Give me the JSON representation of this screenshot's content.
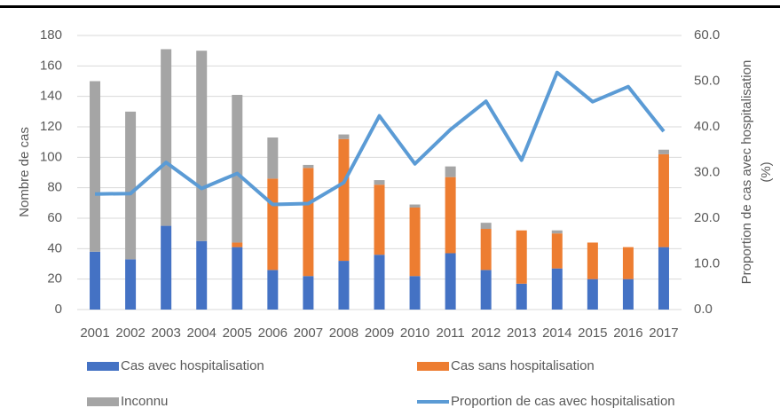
{
  "chart_data": {
    "type": "bar",
    "stacked": true,
    "ylabel": "Nombre de cas",
    "y2label": [
      "Proportion de cas avec hospitalisation",
      "(%)"
    ],
    "categories": [
      "2001",
      "2002",
      "2003",
      "2004",
      "2005",
      "2006",
      "2007",
      "2008",
      "2009",
      "2010",
      "2011",
      "2012",
      "2013",
      "2014",
      "2015",
      "2016",
      "2017"
    ],
    "series": [
      {
        "name": "Cas avec hospitalisation",
        "color": "#4472c4",
        "values": [
          38,
          33,
          55,
          45,
          41,
          26,
          22,
          32,
          36,
          22,
          37,
          26,
          17,
          27,
          20,
          20,
          41
        ]
      },
      {
        "name": "Cas sans hospitalisation",
        "color": "#ed7d31",
        "values": [
          0,
          0,
          0,
          0,
          3,
          60,
          71,
          80,
          46,
          45,
          50,
          27,
          35,
          23,
          24,
          21,
          61
        ]
      },
      {
        "name": "Inconnu",
        "color": "#a5a5a5",
        "values": [
          112,
          97,
          116,
          125,
          97,
          27,
          2,
          3,
          3,
          2,
          7,
          4,
          0,
          2,
          0,
          0,
          3
        ]
      },
      {
        "name": "Proportion de cas avec hospitalisation",
        "color": "#5b9bd5",
        "type": "line",
        "axis": "y2",
        "values": [
          25.3,
          25.4,
          32.2,
          26.5,
          29.8,
          23.0,
          23.2,
          27.8,
          42.4,
          31.9,
          39.4,
          45.6,
          32.7,
          51.9,
          45.5,
          48.8,
          39.0
        ]
      }
    ],
    "ylim": [
      0,
      180
    ],
    "yticks": [
      0,
      20,
      40,
      60,
      80,
      100,
      120,
      140,
      160,
      180
    ],
    "y2lim": [
      0,
      60
    ],
    "y2ticks": [
      {
        "value": 0,
        "label": "0.0"
      },
      {
        "value": 10,
        "label": "10.0"
      },
      {
        "value": 20,
        "label": "20.0"
      },
      {
        "value": 30,
        "label": "30.0"
      },
      {
        "value": 40,
        "label": "40.0"
      },
      {
        "value": 50,
        "label": "50.0"
      },
      {
        "value": 60,
        "label": "60.0"
      }
    ],
    "grid": true
  }
}
